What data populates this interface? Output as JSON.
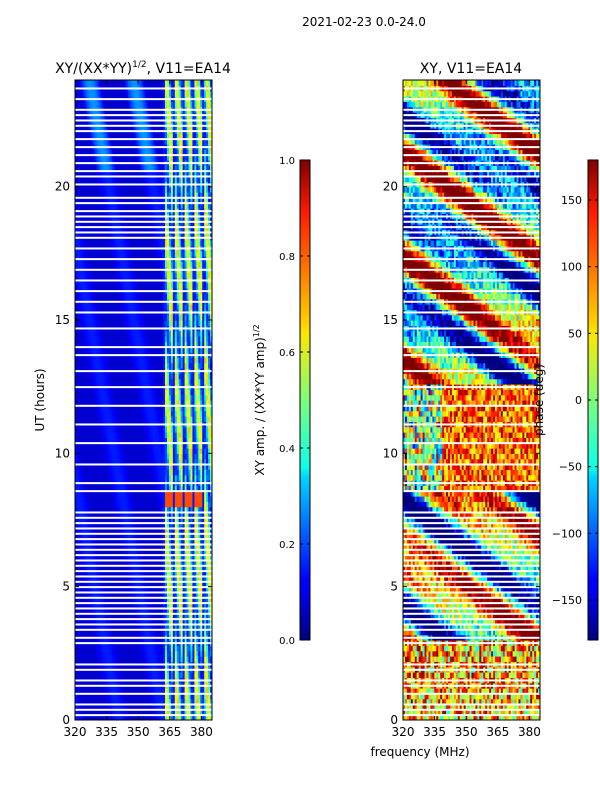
{
  "suptitle": "2021-02-23 0.0-24.0",
  "chart_data": [
    {
      "type": "heatmap",
      "title_main": "XY/(XX*YY)",
      "title_sup": "1/2",
      "title_tail": ", V11=EA14",
      "xlabel": "",
      "ylabel": "UT (hours)",
      "xlim": [
        320,
        385
      ],
      "ylim": [
        0,
        24
      ],
      "xticks": [
        320,
        335,
        350,
        365,
        380
      ],
      "yticks": [
        0,
        5,
        10,
        15,
        20
      ],
      "colorbar": {
        "label_main": "XY amp. / (XX*YY amp)",
        "label_sup": "1/2",
        "range": [
          0.0,
          1.0
        ],
        "ticks": [
          "0.0",
          "0.2",
          "0.4",
          "0.6",
          "0.8",
          "1.0"
        ]
      },
      "colormap": "jet",
      "description_bands": [
        {
          "x_range": [
            320,
            361
          ],
          "level": 0.1
        },
        {
          "x_range": [
            361,
            383
          ],
          "level": 0.45
        }
      ],
      "hot_spot": {
        "x_range": [
          362,
          380
        ],
        "y_range": [
          7.9,
          8.5
        ],
        "level": 0.8
      }
    },
    {
      "type": "heatmap",
      "title": "XY, V11=EA14",
      "xlabel": "frequency (MHz)",
      "ylabel": "",
      "xlim": [
        320,
        385
      ],
      "ylim": [
        0,
        24
      ],
      "xticks": [
        320,
        335,
        350,
        365,
        380
      ],
      "yticks": [
        0,
        5,
        10,
        15,
        20
      ],
      "colorbar": {
        "label": "phase (deg)",
        "range": [
          -180,
          180
        ],
        "ticks": [
          "−150",
          "−100",
          "−50",
          "0",
          "50",
          "100",
          "150"
        ]
      },
      "colormap": "jet"
    }
  ],
  "gap_rows_hours": [
    0.15,
    0.35,
    0.55,
    0.95,
    1.25,
    1.45,
    1.85,
    2.05,
    2.85,
    3.05,
    3.35,
    3.55,
    3.75,
    3.95,
    4.15,
    4.35,
    4.55,
    4.75,
    4.95,
    5.15,
    5.35,
    5.55,
    5.75,
    5.95,
    6.15,
    6.35,
    6.55,
    6.75,
    6.95,
    7.15,
    7.35,
    7.55,
    7.75,
    8.55,
    8.85,
    9.55,
    10.35,
    11.05,
    11.75,
    12.45,
    13.05,
    13.65,
    13.95,
    14.65,
    15.25,
    15.65,
    16.05,
    16.45,
    16.85,
    17.25,
    17.65,
    18.05,
    18.25,
    18.45,
    18.65,
    18.85,
    19.05,
    19.35,
    19.55,
    20.05,
    20.35,
    20.55,
    20.85,
    21.15,
    21.45,
    21.75,
    22.05,
    22.25,
    22.45,
    22.65,
    22.85,
    23.25,
    23.65
  ]
}
